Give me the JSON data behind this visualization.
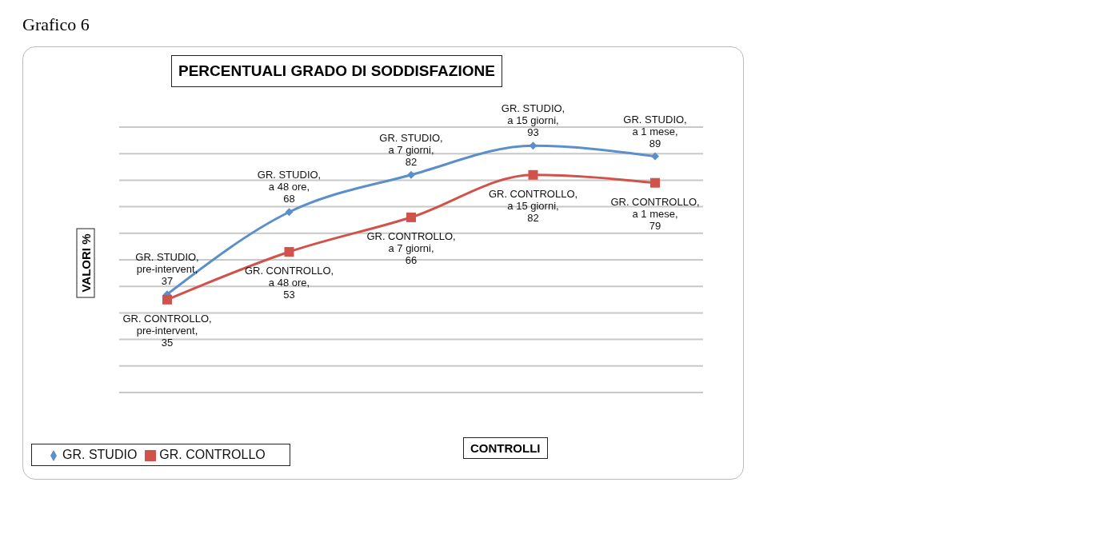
{
  "chart_data": {
    "type": "line",
    "title": "PERCENTUALI GRADO DI SODDISFAZIONE",
    "xlabel": "CONTROLLI",
    "ylabel": "VALORI %",
    "annotations": [
      "Grafico 6"
    ],
    "categories": [
      null,
      null,
      null,
      null,
      null
    ],
    "series": [
      {
        "name": "GR. STUDIO",
        "color": "#5b8fcc",
        "marker": "diamond",
        "values": [
          37,
          68,
          82,
          93,
          89
        ],
        "value_labels": [
          "GR. STUDIO, pre-intervent, 37",
          "GR. STUDIO, a 48 ore, 68",
          "GR. STUDIO, a 7 giorni, 82",
          "GR. STUDIO, a 15 giorni, 93",
          "GR. STUDIO, a 1 mese, 89"
        ]
      },
      {
        "name": "GR. CONTROLLO",
        "color": "#d0524b",
        "marker": "square",
        "values": [
          35,
          53,
          66,
          82,
          79
        ],
        "value_labels": [
          "GR. CONTROLLO, pre-intervent, 35",
          "GR. CONTROLLO, a 48 ore, 53",
          "GR. CONTROLLO, a 7 giorni, 66",
          "GR. CONTROLLO, a 15 giorni, 82",
          "GR. CONTROLLO, a 1 mese, 79"
        ]
      }
    ],
    "ylim": [
      0,
      100
    ],
    "yticks": [
      {
        "value": 0,
        "label": null
      },
      {
        "value": 10,
        "label": null
      },
      {
        "value": 20,
        "label": null
      },
      {
        "value": 30,
        "label": null
      },
      {
        "value": 40,
        "label": null
      },
      {
        "value": 50,
        "label": null
      },
      {
        "value": 60,
        "label": null
      },
      {
        "value": 70,
        "label": null
      },
      {
        "value": 80,
        "label": null
      },
      {
        "value": 90,
        "label": null
      },
      {
        "value": 100,
        "label": null
      }
    ],
    "grid": "y",
    "legend": "bottom left"
  }
}
